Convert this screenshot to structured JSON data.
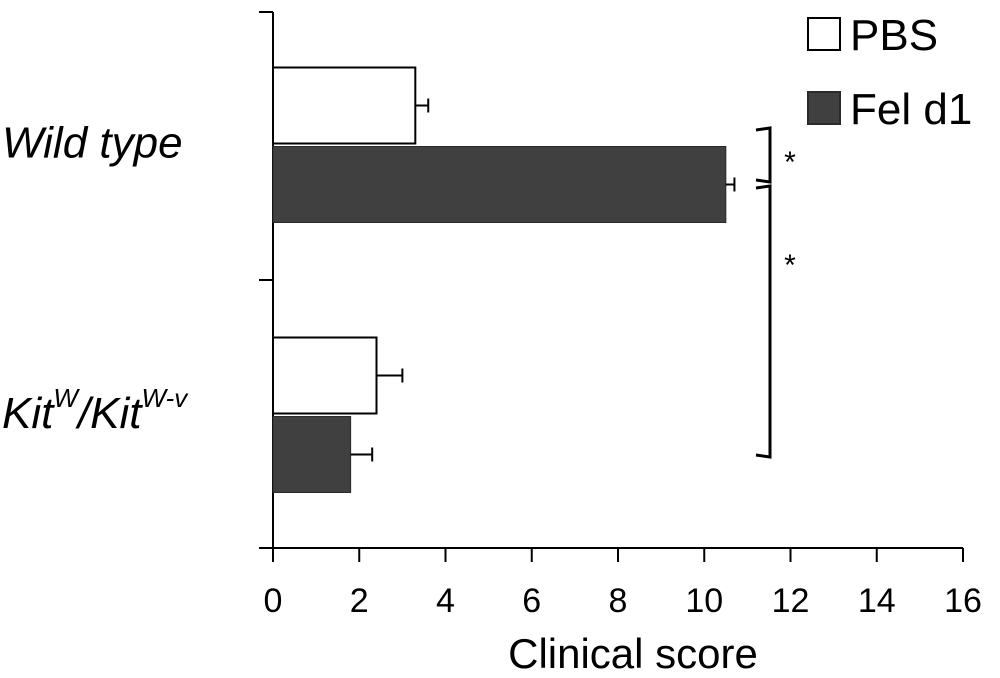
{
  "chart_data": {
    "type": "bar",
    "orientation": "horizontal",
    "xlabel": "Clinical score",
    "xlim": [
      0,
      16
    ],
    "xticks": [
      0,
      2,
      4,
      6,
      8,
      10,
      12,
      14,
      16
    ],
    "grid": false,
    "legend_position": "top-right",
    "categories": [
      {
        "label": "Wild type",
        "base": "",
        "sup1": "",
        "mid": "",
        "sup2": ""
      },
      {
        "label": "",
        "base": "Kit",
        "sup1": "W",
        "mid": "/Kit",
        "sup2": "W-v"
      }
    ],
    "series": [
      {
        "name": "PBS",
        "color": "#ffffff",
        "values": [
          3.3,
          2.4
        ],
        "errors": [
          0.3,
          0.6
        ]
      },
      {
        "name": "Fel d1",
        "color": "#404040",
        "values": [
          10.5,
          1.8
        ],
        "errors": [
          0.2,
          0.5
        ]
      }
    ],
    "annotations": [
      {
        "label": "*",
        "type": "significance-bracket",
        "from": "Wild type / PBS",
        "to": "Wild type / Fel d1"
      },
      {
        "label": "*",
        "type": "significance-bracket",
        "from": "Wild type / Fel d1",
        "to": "KitW/KitW-v / Fel d1"
      }
    ]
  }
}
